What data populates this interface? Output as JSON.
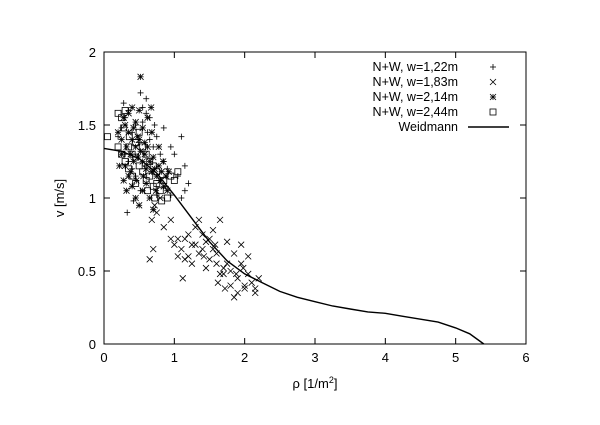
{
  "chart_data": {
    "type": "scatter",
    "xlabel_main": "ρ [1/m",
    "xlabel_sup": "2",
    "xlabel_end": "]",
    "ylabel": "v [m/s]",
    "xlim": [
      0,
      6
    ],
    "ylim": [
      0,
      2
    ],
    "x_ticks": [
      "0",
      "1",
      "2",
      "3",
      "4",
      "5",
      "6"
    ],
    "y_ticks": [
      "0",
      "0.5",
      "1",
      "1.5",
      "2"
    ],
    "grid": false,
    "legend_position": "top-right",
    "series": [
      {
        "name": "N+W, w=1,22m",
        "marker": "plus",
        "points": [
          [
            0.2,
            1.42
          ],
          [
            0.25,
            1.48
          ],
          [
            0.3,
            1.55
          ],
          [
            0.35,
            1.6
          ],
          [
            0.4,
            1.45
          ],
          [
            0.45,
            1.5
          ],
          [
            0.5,
            1.38
          ],
          [
            0.55,
            1.52
          ],
          [
            0.6,
            1.58
          ],
          [
            0.62,
            1.45
          ],
          [
            0.65,
            1.4
          ],
          [
            0.7,
            1.35
          ],
          [
            0.72,
            1.5
          ],
          [
            0.75,
            1.42
          ],
          [
            0.8,
            1.3
          ],
          [
            0.85,
            1.25
          ],
          [
            0.9,
            1.2
          ],
          [
            0.95,
            1.35
          ],
          [
            1.0,
            1.3
          ],
          [
            1.05,
            1.15
          ],
          [
            1.1,
            1.0
          ],
          [
            1.15,
            1.05
          ],
          [
            1.2,
            1.1
          ],
          [
            0.3,
            1.3
          ],
          [
            0.35,
            1.25
          ],
          [
            0.4,
            1.2
          ],
          [
            0.45,
            1.15
          ],
          [
            0.28,
            1.65
          ],
          [
            0.55,
            1.62
          ],
          [
            0.65,
            1.55
          ],
          [
            0.85,
            1.48
          ],
          [
            1.1,
            1.42
          ],
          [
            0.48,
            1.28
          ],
          [
            0.58,
            1.22
          ],
          [
            0.68,
            1.18
          ],
          [
            0.78,
            1.12
          ],
          [
            0.88,
            1.08
          ],
          [
            0.95,
            1.02
          ],
          [
            1.15,
            1.22
          ],
          [
            0.33,
            0.9
          ],
          [
            0.42,
            0.98
          ],
          [
            0.52,
            1.05
          ],
          [
            0.75,
            1.02
          ],
          [
            0.6,
            1.68
          ],
          [
            0.52,
            1.72
          ]
        ]
      },
      {
        "name": "N+W, w=1,83m",
        "marker": "x",
        "points": [
          [
            0.65,
            0.58
          ],
          [
            0.7,
            0.65
          ],
          [
            0.85,
            0.8
          ],
          [
            0.95,
            0.72
          ],
          [
            1.0,
            0.68
          ],
          [
            1.05,
            0.6
          ],
          [
            1.1,
            0.65
          ],
          [
            1.15,
            0.72
          ],
          [
            1.2,
            0.6
          ],
          [
            1.25,
            0.55
          ],
          [
            1.3,
            0.68
          ],
          [
            1.35,
            0.62
          ],
          [
            1.4,
            0.75
          ],
          [
            1.45,
            0.7
          ],
          [
            1.5,
            0.58
          ],
          [
            1.55,
            0.65
          ],
          [
            1.6,
            0.62
          ],
          [
            1.65,
            0.48
          ],
          [
            1.7,
            0.52
          ],
          [
            1.75,
            0.55
          ],
          [
            1.8,
            0.5
          ],
          [
            1.85,
            0.62
          ],
          [
            1.9,
            0.45
          ],
          [
            1.95,
            0.55
          ],
          [
            2.0,
            0.4
          ],
          [
            2.05,
            0.48
          ],
          [
            2.1,
            0.42
          ],
          [
            2.15,
            0.38
          ],
          [
            2.2,
            0.45
          ],
          [
            1.2,
            0.75
          ],
          [
            1.3,
            0.8
          ],
          [
            1.4,
            0.65
          ],
          [
            1.5,
            0.72
          ],
          [
            1.6,
            0.55
          ],
          [
            1.7,
            0.48
          ],
          [
            1.8,
            0.4
          ],
          [
            1.9,
            0.35
          ],
          [
            2.0,
            0.38
          ],
          [
            1.75,
            0.7
          ],
          [
            1.65,
            0.85
          ],
          [
            1.55,
            0.78
          ],
          [
            1.35,
            0.85
          ],
          [
            1.25,
            0.68
          ],
          [
            1.15,
            0.58
          ],
          [
            1.05,
            0.72
          ],
          [
            0.95,
            0.85
          ],
          [
            1.85,
            0.32
          ],
          [
            1.95,
            0.68
          ],
          [
            2.15,
            0.35
          ],
          [
            0.75,
            0.9
          ],
          [
            0.8,
            1.0
          ],
          [
            0.68,
            0.85
          ],
          [
            0.72,
            0.95
          ],
          [
            1.12,
            0.45
          ],
          [
            1.45,
            0.52
          ],
          [
            1.62,
            0.42
          ],
          [
            1.72,
            0.38
          ],
          [
            1.88,
            0.48
          ],
          [
            1.98,
            0.52
          ],
          [
            2.05,
            0.6
          ],
          [
            1.58,
            0.68
          ],
          [
            1.42,
            0.6
          ]
        ]
      },
      {
        "name": "N+W, w=2,14m",
        "marker": "asterisk",
        "points": [
          [
            0.2,
            1.45
          ],
          [
            0.25,
            1.4
          ],
          [
            0.3,
            1.5
          ],
          [
            0.32,
            1.35
          ],
          [
            0.35,
            1.45
          ],
          [
            0.38,
            1.3
          ],
          [
            0.4,
            1.4
          ],
          [
            0.42,
            1.25
          ],
          [
            0.45,
            1.35
          ],
          [
            0.48,
            1.28
          ],
          [
            0.5,
            1.4
          ],
          [
            0.52,
            1.32
          ],
          [
            0.55,
            1.25
          ],
          [
            0.58,
            1.3
          ],
          [
            0.6,
            1.2
          ],
          [
            0.62,
            1.35
          ],
          [
            0.65,
            1.25
          ],
          [
            0.68,
            1.18
          ],
          [
            0.7,
            1.28
          ],
          [
            0.72,
            1.2
          ],
          [
            0.75,
            1.15
          ],
          [
            0.78,
            1.22
          ],
          [
            0.8,
            1.12
          ],
          [
            0.82,
            1.18
          ],
          [
            0.85,
            1.08
          ],
          [
            0.88,
            1.15
          ],
          [
            0.9,
            1.05
          ],
          [
            0.28,
            1.55
          ],
          [
            0.35,
            1.58
          ],
          [
            0.45,
            1.52
          ],
          [
            0.55,
            1.48
          ],
          [
            0.25,
            1.3
          ],
          [
            0.3,
            1.22
          ],
          [
            0.35,
            1.15
          ],
          [
            0.4,
            1.08
          ],
          [
            0.45,
            1.0
          ],
          [
            0.5,
            0.95
          ],
          [
            0.55,
            1.05
          ],
          [
            0.6,
            1.1
          ],
          [
            0.65,
            1.0
          ],
          [
            0.7,
            0.92
          ],
          [
            0.52,
            1.83
          ],
          [
            0.4,
            1.62
          ],
          [
            0.48,
            1.42
          ],
          [
            0.58,
            1.38
          ],
          [
            0.68,
            1.45
          ],
          [
            0.78,
            1.35
          ],
          [
            0.62,
            1.55
          ],
          [
            0.42,
            1.48
          ],
          [
            0.38,
            1.18
          ],
          [
            0.22,
            1.22
          ],
          [
            0.28,
            1.12
          ],
          [
            0.32,
            1.05
          ],
          [
            0.46,
            1.12
          ],
          [
            0.56,
            1.15
          ],
          [
            0.74,
            1.05
          ],
          [
            0.84,
            1.25
          ],
          [
            0.92,
            1.18
          ],
          [
            0.67,
            1.62
          ],
          [
            0.5,
            1.6
          ]
        ]
      },
      {
        "name": "N+W, w=2,44m",
        "marker": "square",
        "points": [
          [
            0.05,
            1.42
          ],
          [
            0.2,
            1.58
          ],
          [
            0.25,
            1.55
          ],
          [
            0.3,
            1.6
          ],
          [
            0.35,
            1.35
          ],
          [
            0.4,
            1.3
          ],
          [
            0.45,
            1.28
          ],
          [
            0.5,
            1.22
          ],
          [
            0.55,
            1.18
          ],
          [
            0.6,
            1.12
          ],
          [
            0.65,
            1.15
          ],
          [
            0.7,
            1.08
          ],
          [
            0.75,
            1.1
          ],
          [
            0.8,
            1.05
          ],
          [
            0.85,
            1.12
          ],
          [
            0.9,
            1.0
          ],
          [
            0.95,
            1.15
          ],
          [
            1.0,
            1.12
          ],
          [
            1.05,
            1.18
          ],
          [
            0.3,
            1.25
          ],
          [
            0.35,
            1.2
          ],
          [
            0.4,
            1.15
          ],
          [
            0.45,
            1.1
          ],
          [
            0.6,
            1.3
          ],
          [
            0.65,
            1.25
          ],
          [
            0.7,
            1.22
          ],
          [
            0.75,
            1.18
          ],
          [
            0.2,
            1.35
          ],
          [
            0.25,
            1.3
          ],
          [
            0.55,
            1.35
          ],
          [
            0.5,
            1.45
          ],
          [
            0.45,
            1.38
          ],
          [
            0.62,
            1.05
          ],
          [
            0.72,
            1.0
          ],
          [
            0.82,
            0.98
          ],
          [
            0.28,
            1.48
          ],
          [
            0.36,
            1.42
          ]
        ]
      },
      {
        "name": "Weidmann",
        "marker": "line",
        "points": [
          [
            0,
            1.34
          ],
          [
            0.25,
            1.32
          ],
          [
            0.5,
            1.27
          ],
          [
            0.75,
            1.17
          ],
          [
            1.0,
            1.02
          ],
          [
            1.25,
            0.86
          ],
          [
            1.5,
            0.7
          ],
          [
            1.75,
            0.57
          ],
          [
            2.0,
            0.48
          ],
          [
            2.25,
            0.42
          ],
          [
            2.5,
            0.36
          ],
          [
            2.75,
            0.32
          ],
          [
            3.0,
            0.29
          ],
          [
            3.25,
            0.26
          ],
          [
            3.5,
            0.24
          ],
          [
            3.75,
            0.22
          ],
          [
            4.0,
            0.21
          ],
          [
            4.25,
            0.19
          ],
          [
            4.5,
            0.17
          ],
          [
            4.75,
            0.15
          ],
          [
            5.0,
            0.11
          ],
          [
            5.2,
            0.07
          ],
          [
            5.4,
            0.0
          ]
        ]
      }
    ]
  }
}
